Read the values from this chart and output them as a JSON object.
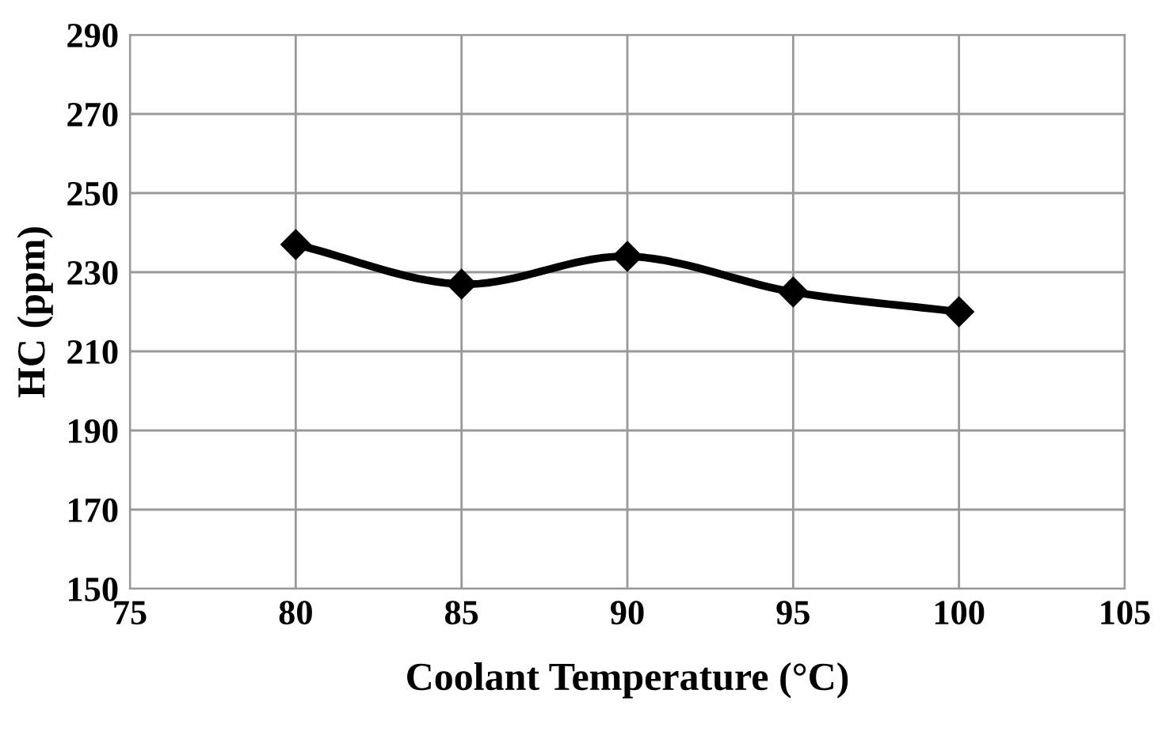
{
  "chart_data": {
    "type": "line",
    "xlabel": "Coolant Temperature (°C)",
    "ylabel": "HC (ppm)",
    "x": [
      80,
      85,
      90,
      95,
      100
    ],
    "series": [
      {
        "color": "#000000",
        "values": [
          237,
          227,
          234,
          225,
          220
        ]
      }
    ],
    "xlim": [
      75,
      105
    ],
    "xticks": [
      75,
      80,
      85,
      90,
      95,
      100,
      105
    ],
    "ylim": [
      150,
      290
    ],
    "yticks": [
      150,
      170,
      190,
      210,
      230,
      250,
      270,
      290
    ],
    "grid": true,
    "marker": "diamond",
    "line_style": "solid",
    "legend": false
  }
}
